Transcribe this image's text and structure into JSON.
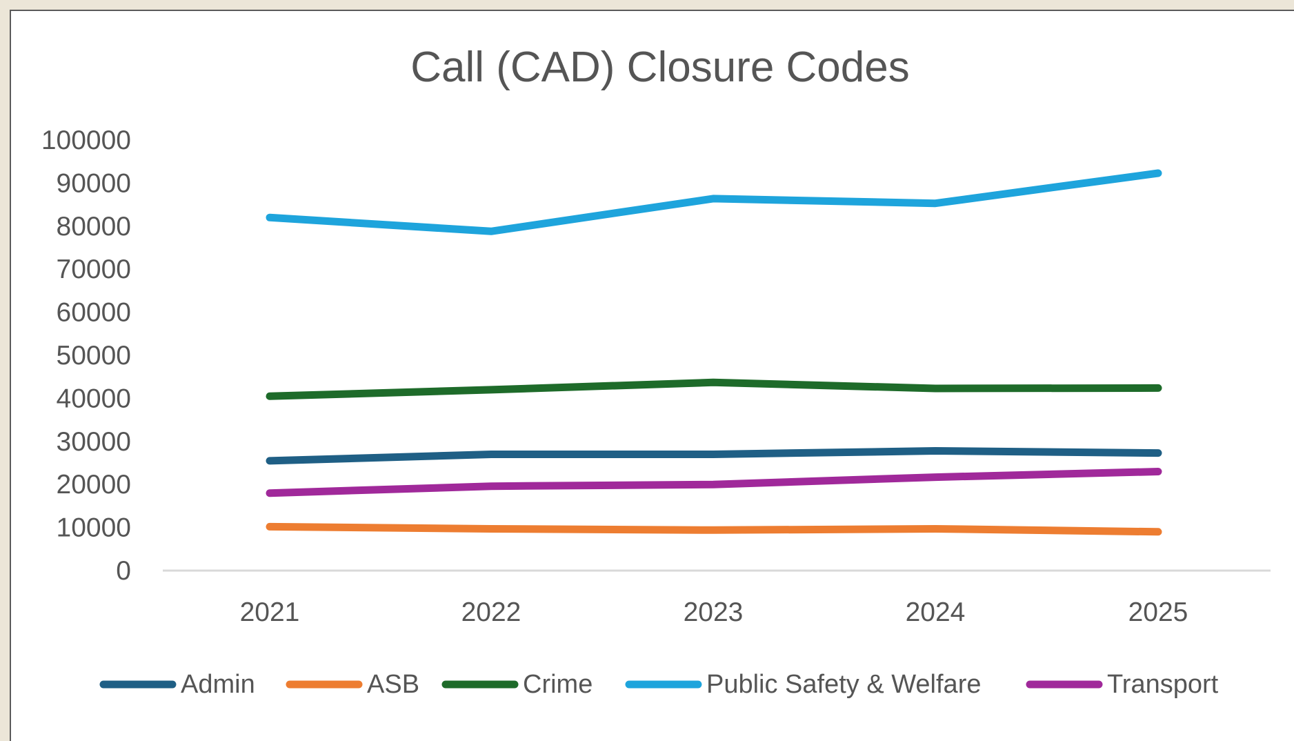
{
  "chart_data": {
    "type": "line",
    "title": "Call (CAD) Closure Codes",
    "xlabel": "",
    "ylabel": "",
    "categories": [
      "2021",
      "2022",
      "2023",
      "2024",
      "2025"
    ],
    "ylim": [
      0,
      100000
    ],
    "yticks": [
      "0",
      "10000",
      "20000",
      "30000",
      "40000",
      "50000",
      "60000",
      "70000",
      "80000",
      "90000",
      "100000"
    ],
    "grid": false,
    "legend_position": "bottom",
    "series": [
      {
        "name": "Admin",
        "color": "#1f5f85",
        "values": [
          25500,
          27000,
          27000,
          27800,
          27300
        ]
      },
      {
        "name": "ASB",
        "color": "#ed7d31",
        "values": [
          10200,
          9700,
          9400,
          9700,
          9000
        ]
      },
      {
        "name": "Crime",
        "color": "#1e6b2a",
        "values": [
          40500,
          42000,
          43700,
          42300,
          42400
        ]
      },
      {
        "name": "Public Safety & Welfare",
        "color": "#1ea4dc",
        "values": [
          82000,
          78800,
          86400,
          85300,
          92300
        ]
      },
      {
        "name": "Transport",
        "color": "#a0299a",
        "values": [
          18000,
          19600,
          20000,
          21700,
          23000
        ]
      }
    ]
  }
}
